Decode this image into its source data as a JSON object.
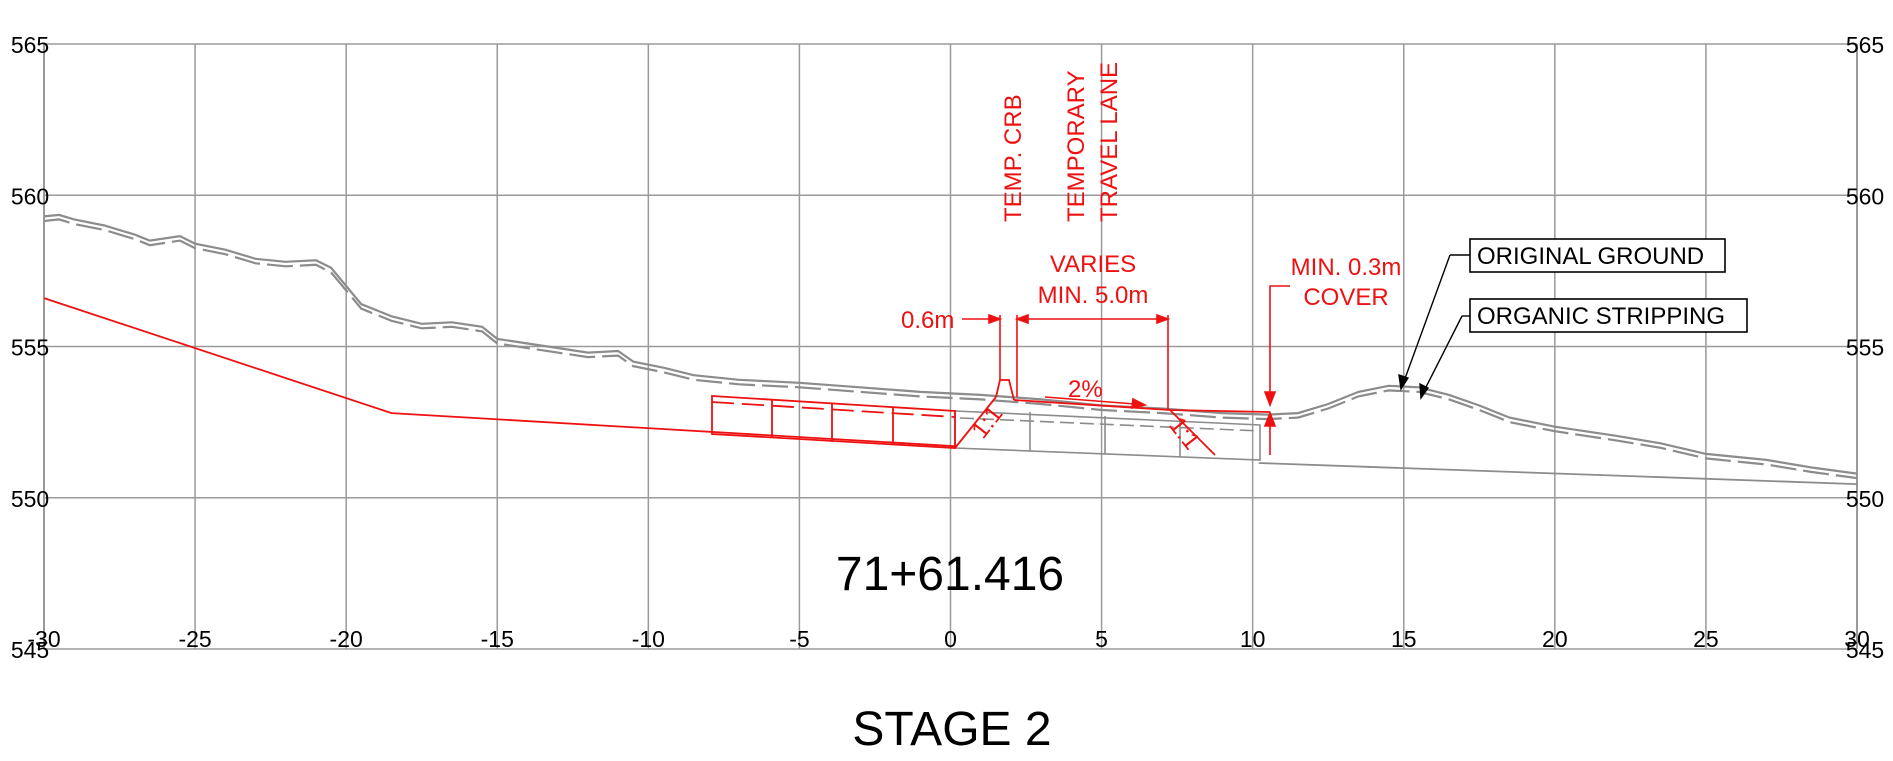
{
  "station": "71+61.416",
  "stage_title": "STAGE 2",
  "axes": {
    "x_ticks": [
      "-30",
      "-25",
      "-20",
      "-15",
      "-10",
      "-5",
      "0",
      "5",
      "10",
      "15",
      "20",
      "25",
      "30"
    ],
    "y_ticks": [
      "565",
      "560",
      "555",
      "550",
      "545"
    ],
    "x_range": [
      -30,
      30
    ],
    "y_range": [
      545,
      565
    ],
    "grid": true
  },
  "annotations": {
    "temp_crb": "TEMP. CRB",
    "temporary": "TEMPORARY",
    "travel_lane": "TRAVEL LANE",
    "varies": "VARIES",
    "min_width": "MIN. 5.0m",
    "offset": "0.6m",
    "cross_slope": "2%",
    "min_cover": "MIN. 0.3m",
    "cover": "COVER",
    "slope_left": "1:1",
    "slope_right": "1:1"
  },
  "callouts": {
    "original_ground": "ORIGINAL GROUND",
    "organic_stripping": "ORGANIC STRIPPING"
  },
  "colors": {
    "grid": "#9a9a9a",
    "ground": "#8c8c8c",
    "design": "#ee1111",
    "text": "#000000"
  },
  "profiles": {
    "original_ground": [
      [
        -30,
        559.3
      ],
      [
        -29.5,
        559.35
      ],
      [
        -29,
        559.2
      ],
      [
        -28,
        559.0
      ],
      [
        -27,
        558.7
      ],
      [
        -26.5,
        558.5
      ],
      [
        -25.5,
        558.65
      ],
      [
        -25,
        558.4
      ],
      [
        -24,
        558.2
      ],
      [
        -23,
        557.9
      ],
      [
        -22,
        557.8
      ],
      [
        -21,
        557.85
      ],
      [
        -20.5,
        557.6
      ],
      [
        -20,
        557.0
      ],
      [
        -19.5,
        556.4
      ],
      [
        -18.5,
        556.0
      ],
      [
        -17.5,
        555.75
      ],
      [
        -16.5,
        555.8
      ],
      [
        -15.5,
        555.65
      ],
      [
        -15,
        555.25
      ],
      [
        -14,
        555.1
      ],
      [
        -13,
        554.95
      ],
      [
        -12,
        554.8
      ],
      [
        -11,
        554.85
      ],
      [
        -10.5,
        554.5
      ],
      [
        -9.5,
        554.3
      ],
      [
        -8.5,
        554.05
      ],
      [
        -7,
        553.9
      ],
      [
        -5,
        553.8
      ],
      [
        -3,
        553.65
      ],
      [
        -1,
        553.5
      ],
      [
        1,
        553.4
      ],
      [
        3,
        553.25
      ],
      [
        5,
        553.05
      ],
      [
        7,
        552.95
      ],
      [
        9,
        552.8
      ],
      [
        10.5,
        552.75
      ],
      [
        11.5,
        552.8
      ],
      [
        12.5,
        553.1
      ],
      [
        13.5,
        553.5
      ],
      [
        14.5,
        553.7
      ],
      [
        15.5,
        553.65
      ],
      [
        16.5,
        553.4
      ],
      [
        17.5,
        553.05
      ],
      [
        18.5,
        552.65
      ],
      [
        20,
        552.35
      ],
      [
        22,
        552.05
      ],
      [
        23.5,
        551.8
      ],
      [
        25,
        551.45
      ],
      [
        27,
        551.25
      ],
      [
        28.5,
        551.0
      ],
      [
        30,
        550.8
      ]
    ],
    "organic_stripping": [
      [
        -30,
        559.15
      ],
      [
        -29.5,
        559.2
      ],
      [
        -29,
        559.05
      ],
      [
        -28,
        558.85
      ],
      [
        -27,
        558.55
      ],
      [
        -26.5,
        558.35
      ],
      [
        -25.5,
        558.5
      ],
      [
        -25,
        558.25
      ],
      [
        -24,
        558.05
      ],
      [
        -23,
        557.75
      ],
      [
        -22,
        557.65
      ],
      [
        -21,
        557.7
      ],
      [
        -20.5,
        557.45
      ],
      [
        -20,
        556.85
      ],
      [
        -19.5,
        556.25
      ],
      [
        -18.5,
        555.85
      ],
      [
        -17.5,
        555.6
      ],
      [
        -16.5,
        555.65
      ],
      [
        -15.5,
        555.5
      ],
      [
        -15,
        555.1
      ],
      [
        -14,
        554.95
      ],
      [
        -13,
        554.8
      ],
      [
        -12,
        554.65
      ],
      [
        -11,
        554.7
      ],
      [
        -10.5,
        554.35
      ],
      [
        -9.5,
        554.15
      ],
      [
        -8.5,
        553.9
      ],
      [
        -7,
        553.75
      ],
      [
        -5,
        553.65
      ],
      [
        -3,
        553.5
      ],
      [
        -1,
        553.35
      ],
      [
        1,
        553.25
      ],
      [
        3,
        553.1
      ],
      [
        5,
        552.9
      ],
      [
        7,
        552.8
      ],
      [
        9,
        552.65
      ],
      [
        10.5,
        552.6
      ],
      [
        11.5,
        552.65
      ],
      [
        12.5,
        552.95
      ],
      [
        13.5,
        553.35
      ],
      [
        14.5,
        553.55
      ],
      [
        15.5,
        553.5
      ],
      [
        16.5,
        553.25
      ],
      [
        17.5,
        552.9
      ],
      [
        18.5,
        552.5
      ],
      [
        20,
        552.2
      ],
      [
        22,
        551.9
      ],
      [
        23.5,
        551.65
      ],
      [
        25,
        551.3
      ],
      [
        27,
        551.1
      ],
      [
        28.5,
        550.85
      ],
      [
        30,
        550.65
      ]
    ],
    "design_left": [
      [
        -30,
        556.6
      ],
      [
        -18.5,
        552.8
      ],
      [
        0.2,
        551.7
      ]
    ],
    "existing_subgrade": [
      [
        10.2,
        551.15
      ],
      [
        30,
        550.45
      ]
    ]
  }
}
